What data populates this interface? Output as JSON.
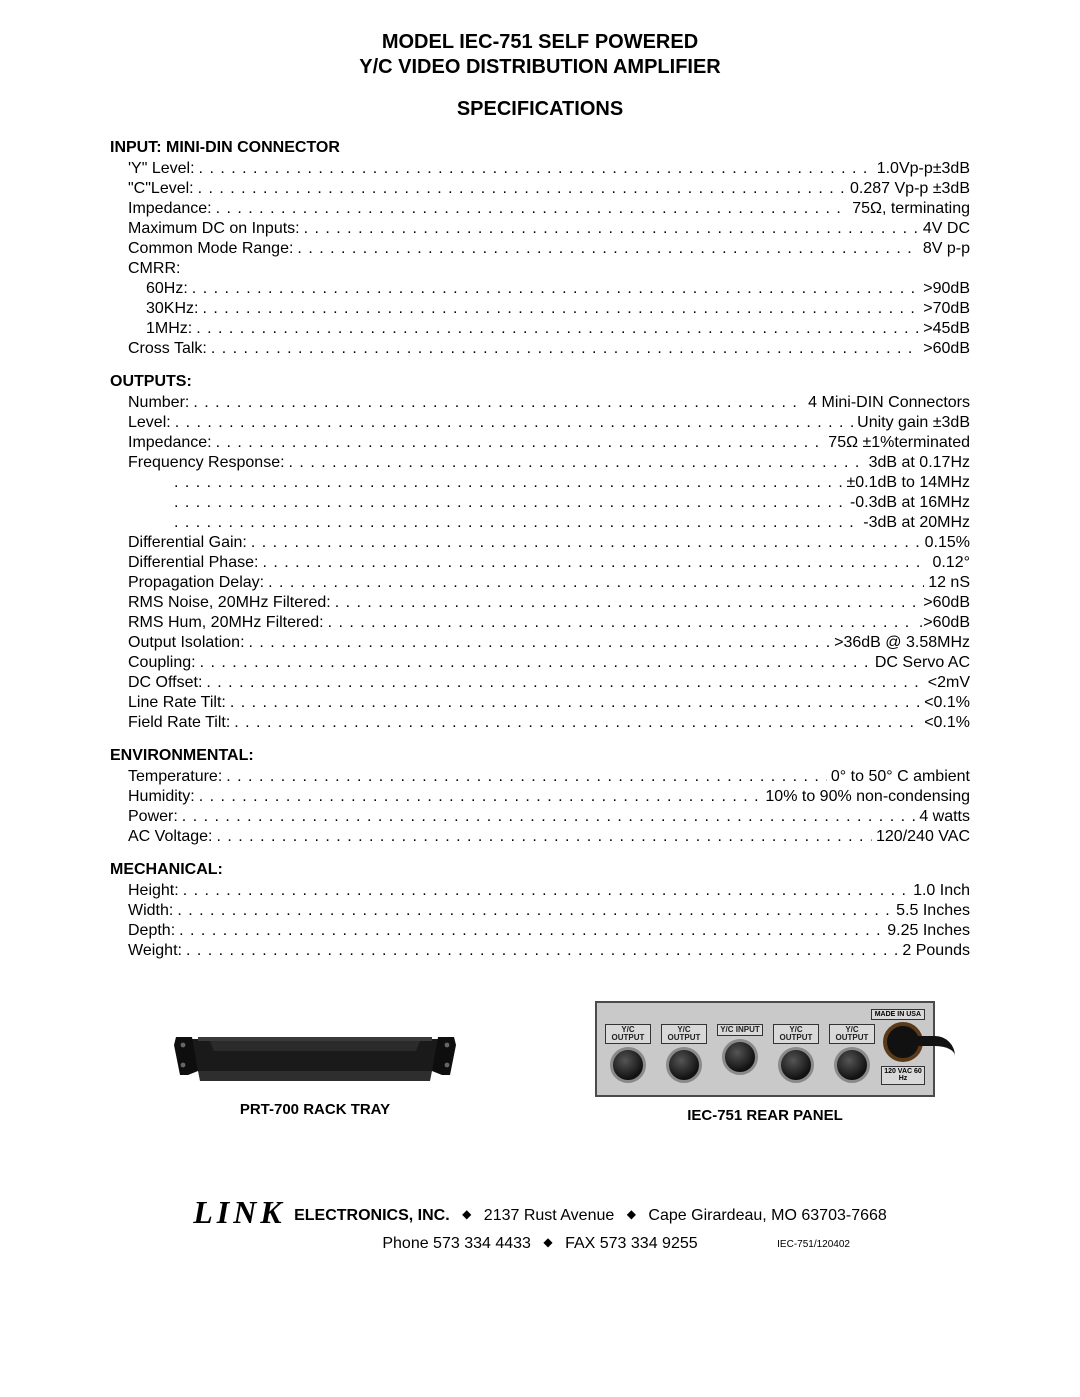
{
  "title": {
    "line1": "MODEL IEC-751 SELF POWERED",
    "line2": "Y/C VIDEO DISTRIBUTION AMPLIFIER",
    "specs": "SPECIFICATIONS"
  },
  "sections": [
    {
      "heading": "INPUT: MINI-DIN CONNECTOR",
      "rows": [
        {
          "label": "'Y\" Level:",
          "value": "1.0Vp-p±3dB",
          "indent": 1
        },
        {
          "label": "\"C\"Level:",
          "value": "0.287 Vp-p ±3dB",
          "indent": 1
        },
        {
          "label": "Impedance:",
          "value": "75Ω, terminating",
          "indent": 1
        },
        {
          "label": "Maximum DC on Inputs:",
          "value": "4V DC",
          "indent": 1
        },
        {
          "label": "Common Mode Range:",
          "value": "8V p-p",
          "indent": 1
        },
        {
          "plain": "CMRR:",
          "indent": 1
        },
        {
          "label": "60Hz:",
          "value": ">90dB",
          "indent": 2
        },
        {
          "label": "30KHz:",
          "value": ">70dB",
          "indent": 2
        },
        {
          "label": "1MHz:",
          "value": ">45dB",
          "indent": 2
        },
        {
          "label": "Cross Talk:",
          "value": ">60dB",
          "indent": 1
        }
      ]
    },
    {
      "heading": "OUTPUTS:",
      "rows": [
        {
          "label": "Number:",
          "value": "4 Mini-DIN Connectors",
          "indent": 1
        },
        {
          "label": "Level:",
          "value": "Unity gain ±3dB",
          "indent": 1
        },
        {
          "label": "Impedance:",
          "value": "75Ω ±1%terminated",
          "indent": 1
        },
        {
          "label": "Frequency Response:",
          "value": "3dB at 0.17Hz",
          "indent": 1
        },
        {
          "label": "",
          "value": "±0.1dB to 14MHz",
          "indent": 3
        },
        {
          "label": "",
          "value": "-0.3dB at 16MHz",
          "indent": 3
        },
        {
          "label": "",
          "value": "-3dB at 20MHz",
          "indent": 3
        },
        {
          "label": "Differential Gain:",
          "value": "0.15%",
          "indent": 1
        },
        {
          "label": "Differential Phase:",
          "value": "0.12°",
          "indent": 1
        },
        {
          "label": "Propagation Delay:",
          "value": "12 nS",
          "indent": 1
        },
        {
          "label": "RMS Noise, 20MHz Filtered:",
          "value": ">60dB",
          "indent": 1
        },
        {
          "label": "RMS Hum, 20MHz Filtered:",
          "value": ".>60dB",
          "indent": 1
        },
        {
          "label": "Output Isolation:",
          "value": ">36dB @ 3.58MHz",
          "indent": 1
        },
        {
          "label": "Coupling:",
          "value": "DC Servo AC",
          "indent": 1
        },
        {
          "label": "DC Offset:",
          "value": "<2mV",
          "indent": 1
        },
        {
          "label": "Line Rate Tilt:",
          "value": "<0.1%",
          "indent": 1
        },
        {
          "label": "Field Rate Tilt:",
          "value": "<0.1%",
          "indent": 1
        }
      ]
    },
    {
      "heading": "ENVIRONMENTAL:",
      "rows": [
        {
          "label": "Temperature:",
          "value": "0° to 50° C ambient",
          "indent": 1
        },
        {
          "label": "Humidity:",
          "value": "10% to 90% non-condensing",
          "indent": 1
        },
        {
          "label": "Power:",
          "value": "4 watts",
          "indent": 1
        },
        {
          "label": "AC Voltage:",
          "value": "120/240 VAC",
          "indent": 1
        }
      ]
    },
    {
      "heading": "MECHANICAL:",
      "rows": [
        {
          "label": "Height:",
          "value": "1.0 Inch",
          "indent": 1
        },
        {
          "label": "Width:",
          "value": "5.5 Inches",
          "indent": 1
        },
        {
          "label": "Depth:",
          "value": "9.25 Inches",
          "indent": 1
        },
        {
          "label": "Weight:",
          "value": "2 Pounds",
          "indent": 1
        }
      ]
    }
  ],
  "images": {
    "left_caption": "PRT-700 RACK TRAY",
    "right_caption": "IEC-751 REAR PANEL",
    "rear_panel": {
      "ports": [
        "Y/C OUTPUT",
        "Y/C OUTPUT",
        "Y/C INPUT",
        "Y/C OUTPUT",
        "Y/C OUTPUT"
      ],
      "power_label": "120 VAC 60 Hz",
      "made_label": "MADE IN USA"
    }
  },
  "footer": {
    "brand": "LINK",
    "company": "ELECTRONICS, INC.",
    "address1": "2137 Rust Avenue",
    "address2": "Cape Girardeau, MO 63703-7668",
    "phone": "Phone 573 334 4433",
    "fax": "FAX  573 334 9255",
    "docnum": "IEC-751/120402"
  }
}
